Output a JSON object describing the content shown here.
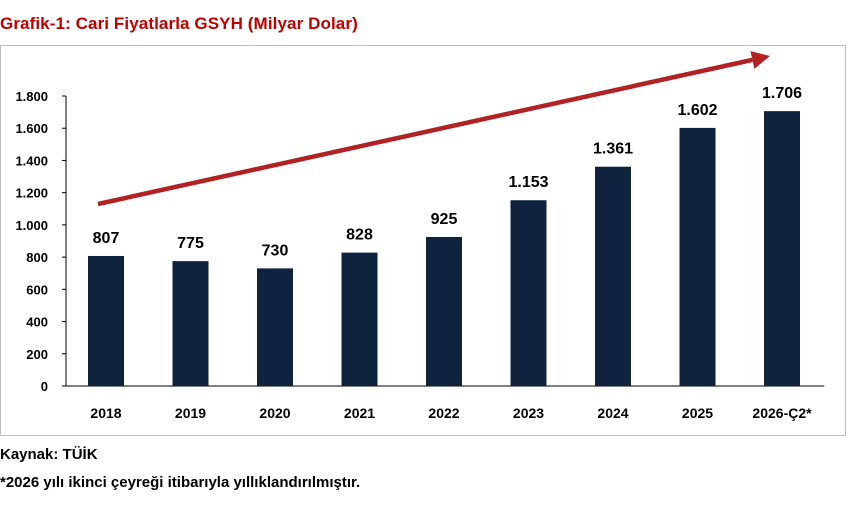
{
  "colors": {
    "title": "#c00000",
    "bar": "#10233e",
    "arrow": "#b22222",
    "text": "#000000"
  },
  "footer": {
    "source": "Kaynak: TÜİK",
    "note": "*2026 yılı ikinci çeyreği itibarıyla yıllıklandırılmıştır."
  },
  "chart_data": {
    "type": "bar",
    "title": "Grafik-1: Cari Fiyatlarla GSYH (Milyar Dolar)",
    "categories": [
      "2018",
      "2019",
      "2020",
      "2021",
      "2022",
      "2023",
      "2024",
      "2025",
      "2026-Ç2*"
    ],
    "values": [
      807,
      775,
      730,
      828,
      925,
      1153,
      1361,
      1602,
      1706
    ],
    "value_labels": [
      "807",
      "775",
      "730",
      "828",
      "925",
      "1.153",
      "1.361",
      "1.602",
      "1.706"
    ],
    "ylim": [
      0,
      1800
    ],
    "yticks": [
      0,
      200,
      400,
      600,
      800,
      1000,
      1200,
      1400,
      1600,
      1800
    ],
    "ytick_labels": [
      "0",
      "200",
      "400",
      "600",
      "800",
      "1.000",
      "1.200",
      "1.400",
      "1.600",
      "1.800"
    ],
    "grid": false,
    "legend": "none",
    "trend_arrow": true
  }
}
